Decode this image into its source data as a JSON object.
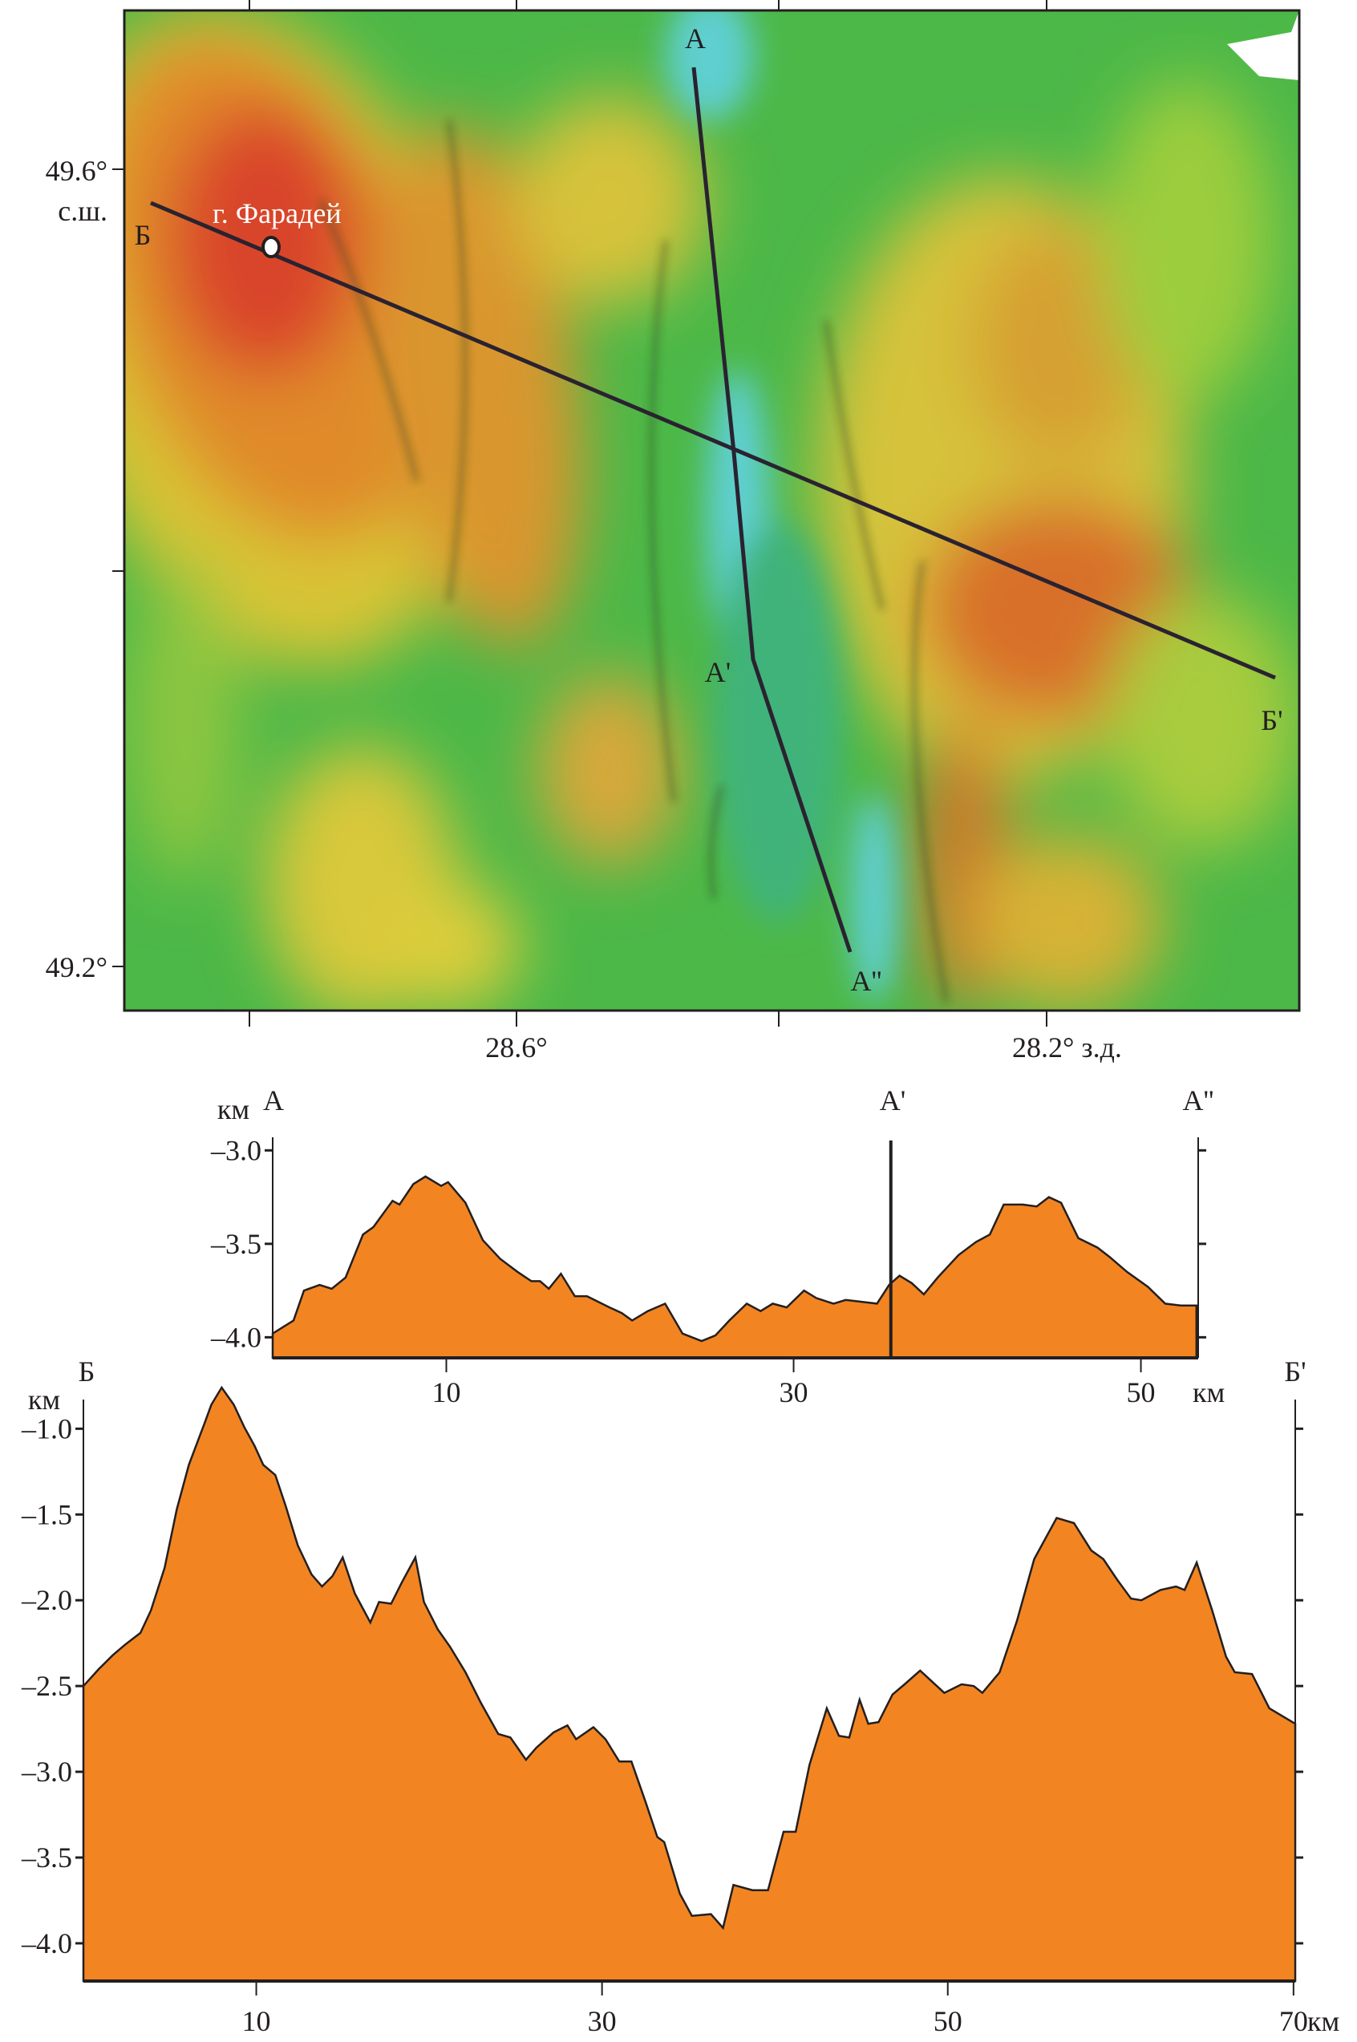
{
  "map": {
    "lat_labels": {
      "top": "49.6°",
      "top_suffix": "с.ш.",
      "bottom": "49.2°"
    },
    "lon_labels": {
      "left": "28.6°",
      "right": "28.2° з.д."
    },
    "peak_label": "г. Фарадей",
    "profile_labels": {
      "a": "А",
      "a1": "А'",
      "a2": "А''",
      "b": "Б",
      "b1": "Б'"
    },
    "colors": {
      "deep": "#5fcfd0",
      "mid": "#4cb848",
      "shallow": "#e6dc38",
      "high": "#e8862a",
      "peak": "#d9452b",
      "profile_line": "#2a2230"
    }
  },
  "chart_data": [
    {
      "type": "area",
      "title": "",
      "start_label": "А",
      "mid_label": "А'",
      "end_label": "А''",
      "ylabel": "км",
      "xlabel": "км",
      "xlim": [
        0,
        53.3
      ],
      "ylim": [
        -4.11,
        -2.93
      ],
      "xticks": [
        10,
        30,
        50
      ],
      "xtick_labels": [
        "10",
        "30",
        "50"
      ],
      "yticks": [
        -3.0,
        -3.5,
        -4.0
      ],
      "ytick_labels": [
        "–3.0",
        "–3.5",
        "–4.0"
      ],
      "marker_x": 35.6,
      "fill_color": "#f28522",
      "x": [
        0,
        1.2,
        1.8,
        2.7,
        3.4,
        4.2,
        5.2,
        5.8,
        6.9,
        7.3,
        8.1,
        8.8,
        9.7,
        10.1,
        11.1,
        12.1,
        13.1,
        14.1,
        14.9,
        15.4,
        15.9,
        16.6,
        17.4,
        18.1,
        19.4,
        20.1,
        20.7,
        21.6,
        22.6,
        23.6,
        24.7,
        25.5,
        26.3,
        27.3,
        28.1,
        28.8,
        29.6,
        30.6,
        31.3,
        32.3,
        33.0,
        34.8,
        35.5,
        36.1,
        36.8,
        37.5,
        38.3,
        39.5,
        40.5,
        41.3,
        42.1,
        43.2,
        44.0,
        44.7,
        45.4,
        46.4,
        47.5,
        48.2,
        49.2,
        50.4,
        51.4,
        52.3,
        53.2
      ],
      "y": [
        -3.98,
        -3.91,
        -3.75,
        -3.72,
        -3.74,
        -3.68,
        -3.45,
        -3.41,
        -3.27,
        -3.29,
        -3.18,
        -3.14,
        -3.19,
        -3.17,
        -3.28,
        -3.48,
        -3.58,
        -3.65,
        -3.7,
        -3.7,
        -3.74,
        -3.66,
        -3.78,
        -3.78,
        -3.84,
        -3.87,
        -3.91,
        -3.86,
        -3.82,
        -3.98,
        -4.02,
        -3.99,
        -3.91,
        -3.82,
        -3.86,
        -3.82,
        -3.84,
        -3.75,
        -3.79,
        -3.82,
        -3.8,
        -3.82,
        -3.72,
        -3.67,
        -3.71,
        -3.77,
        -3.68,
        -3.56,
        -3.49,
        -3.45,
        -3.29,
        -3.29,
        -3.3,
        -3.25,
        -3.28,
        -3.47,
        -3.52,
        -3.57,
        -3.65,
        -3.73,
        -3.82,
        -3.83,
        -3.83
      ]
    },
    {
      "type": "area",
      "title": "",
      "start_label": "Б",
      "end_label": "Б'",
      "ylabel": "км",
      "xlabel": "км",
      "xlim": [
        0,
        70.1
      ],
      "ylim": [
        -4.22,
        -0.83
      ],
      "xticks": [
        10,
        30,
        50,
        70
      ],
      "xtick_labels": [
        "10",
        "30",
        "50",
        "70"
      ],
      "yticks": [
        -1.0,
        -1.5,
        -2.0,
        -2.5,
        -3.0,
        -3.5,
        -4.0
      ],
      "ytick_labels": [
        "–1.0",
        "–1.5",
        "–2.0",
        "–2.5",
        "–3.0",
        "–3.5",
        "–4.0"
      ],
      "fill_color": "#f28522",
      "x": [
        0,
        0.9,
        1.7,
        2.4,
        3.3,
        3.9,
        4.7,
        5.4,
        6.1,
        7.0,
        7.4,
        8.0,
        8.7,
        9.3,
        9.9,
        10.4,
        11.1,
        11.7,
        12.4,
        13.2,
        13.8,
        14.4,
        15.0,
        15.7,
        16.6,
        17.1,
        17.8,
        18.4,
        19.2,
        19.7,
        20.5,
        21.2,
        22.1,
        23.0,
        24.0,
        24.7,
        25.6,
        26.2,
        27.2,
        28.0,
        28.5,
        29.5,
        30.2,
        31.0,
        31.7,
        32.5,
        33.2,
        33.6,
        34.5,
        35.2,
        36.3,
        37.0,
        37.6,
        38.7,
        39.6,
        40.5,
        41.2,
        42.0,
        43.0,
        43.7,
        44.3,
        44.9,
        45.4,
        46.0,
        46.8,
        47.5,
        48.4,
        49.8,
        50.8,
        51.5,
        52.0,
        53.0,
        54.0,
        55.0,
        56.3,
        57.3,
        58.3,
        59.0,
        59.8,
        60.6,
        61.2,
        62.3,
        63.2,
        63.7,
        64.4,
        65.3,
        66.1,
        66.6,
        67.6,
        68.6,
        70.1
      ],
      "y": [
        -2.5,
        -2.4,
        -2.32,
        -2.26,
        -2.19,
        -2.06,
        -1.81,
        -1.47,
        -1.21,
        -0.97,
        -0.86,
        -0.76,
        -0.86,
        -0.99,
        -1.1,
        -1.21,
        -1.27,
        -1.45,
        -1.68,
        -1.85,
        -1.92,
        -1.86,
        -1.75,
        -1.96,
        -2.13,
        -2.01,
        -2.02,
        -1.9,
        -1.75,
        -2.01,
        -2.17,
        -2.27,
        -2.42,
        -2.6,
        -2.78,
        -2.8,
        -2.93,
        -2.86,
        -2.77,
        -2.73,
        -2.81,
        -2.74,
        -2.81,
        -2.94,
        -2.94,
        -3.17,
        -3.38,
        -3.41,
        -3.71,
        -3.84,
        -3.83,
        -3.91,
        -3.66,
        -3.69,
        -3.69,
        -3.35,
        -3.35,
        -2.96,
        -2.63,
        -2.79,
        -2.8,
        -2.58,
        -2.72,
        -2.71,
        -2.55,
        -2.49,
        -2.41,
        -2.54,
        -2.49,
        -2.5,
        -2.54,
        -2.42,
        -2.12,
        -1.76,
        -1.52,
        -1.55,
        -1.71,
        -1.76,
        -1.88,
        -1.99,
        -2.0,
        -1.94,
        -1.92,
        -1.94,
        -1.78,
        -2.06,
        -2.33,
        -2.42,
        -2.43,
        -2.63,
        -2.72
      ]
    }
  ]
}
